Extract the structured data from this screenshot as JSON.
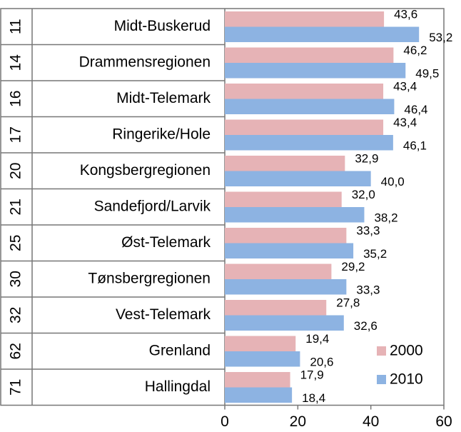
{
  "chart_data": {
    "type": "barh",
    "ranks": [
      "11",
      "14",
      "16",
      "17",
      "20",
      "21",
      "25",
      "30",
      "32",
      "62",
      "71"
    ],
    "categories": [
      "Midt-Buskerud",
      "Drammensregionen",
      "Midt-Telemark",
      "Ringerike/Hole",
      "Kongsbergregionen",
      "Sandefjord/Larvik",
      "Øst-Telemark",
      "Tønsbergregionen",
      "Vest-Telemark",
      "Grenland",
      "Hallingdal"
    ],
    "series": [
      {
        "name": "2000",
        "color": "#e6b3b6",
        "values": [
          43.6,
          46.2,
          43.4,
          43.4,
          32.9,
          32.0,
          33.3,
          29.2,
          27.8,
          19.4,
          17.9
        ],
        "value_labels": [
          "43,6",
          "46,2",
          "43,4",
          "43,4",
          "32,9",
          "32,0",
          "33,3",
          "29,2",
          "27,8",
          "19,4",
          "17,9"
        ]
      },
      {
        "name": "2010",
        "color": "#8db3e2",
        "values": [
          53.2,
          49.5,
          46.4,
          46.1,
          40.0,
          38.2,
          35.2,
          33.3,
          32.6,
          20.6,
          18.4
        ],
        "value_labels": [
          "53,2",
          "49,5",
          "46,4",
          "46,1",
          "40,0",
          "38,2",
          "35,2",
          "33,3",
          "32,6",
          "20,6",
          "18,4"
        ]
      }
    ],
    "xlim": [
      0,
      60
    ],
    "xticks": [
      0,
      20,
      40,
      60
    ],
    "legend": "lower right"
  }
}
